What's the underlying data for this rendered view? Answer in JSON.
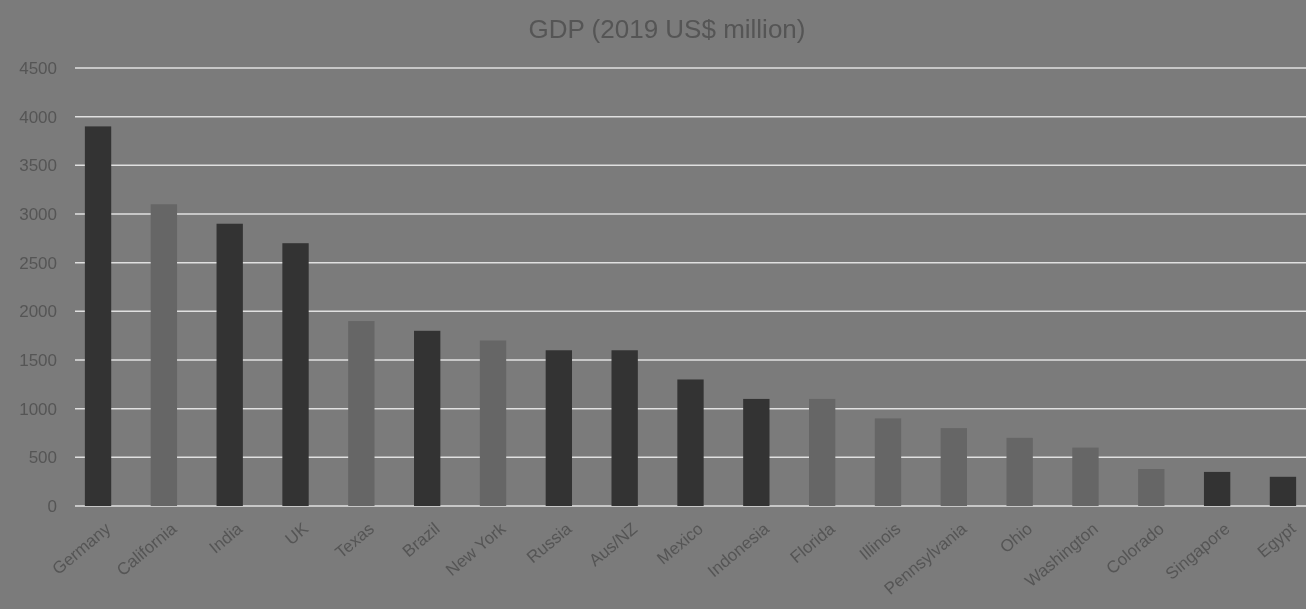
{
  "chart_data": {
    "type": "bar",
    "title": "GDP (2019 US$ million)",
    "categories": [
      "Germany",
      "California",
      "India",
      "UK",
      "Texas",
      "Brazil",
      "New York",
      "Russia",
      "Aus/NZ",
      "Mexico",
      "Indonesia",
      "Florida",
      "Illinois",
      "Pennsylvania",
      "Ohio",
      "Washington",
      "Colorado",
      "Singapore",
      "Egypt"
    ],
    "values": [
      3900,
      3100,
      2900,
      2700,
      1900,
      1800,
      1700,
      1600,
      1600,
      1300,
      1100,
      1100,
      900,
      800,
      700,
      600,
      380,
      350,
      300
    ],
    "colors": [
      "#333333",
      "#666666",
      "#333333",
      "#333333",
      "#666666",
      "#333333",
      "#666666",
      "#333333",
      "#333333",
      "#333333",
      "#333333",
      "#666666",
      "#666666",
      "#666666",
      "#666666",
      "#666666",
      "#666666",
      "#333333",
      "#333333"
    ],
    "ylim": [
      0,
      4500
    ],
    "yticks": [
      0,
      500,
      1000,
      1500,
      2000,
      2500,
      3000,
      3500,
      4000,
      4500
    ],
    "grid": "y"
  }
}
